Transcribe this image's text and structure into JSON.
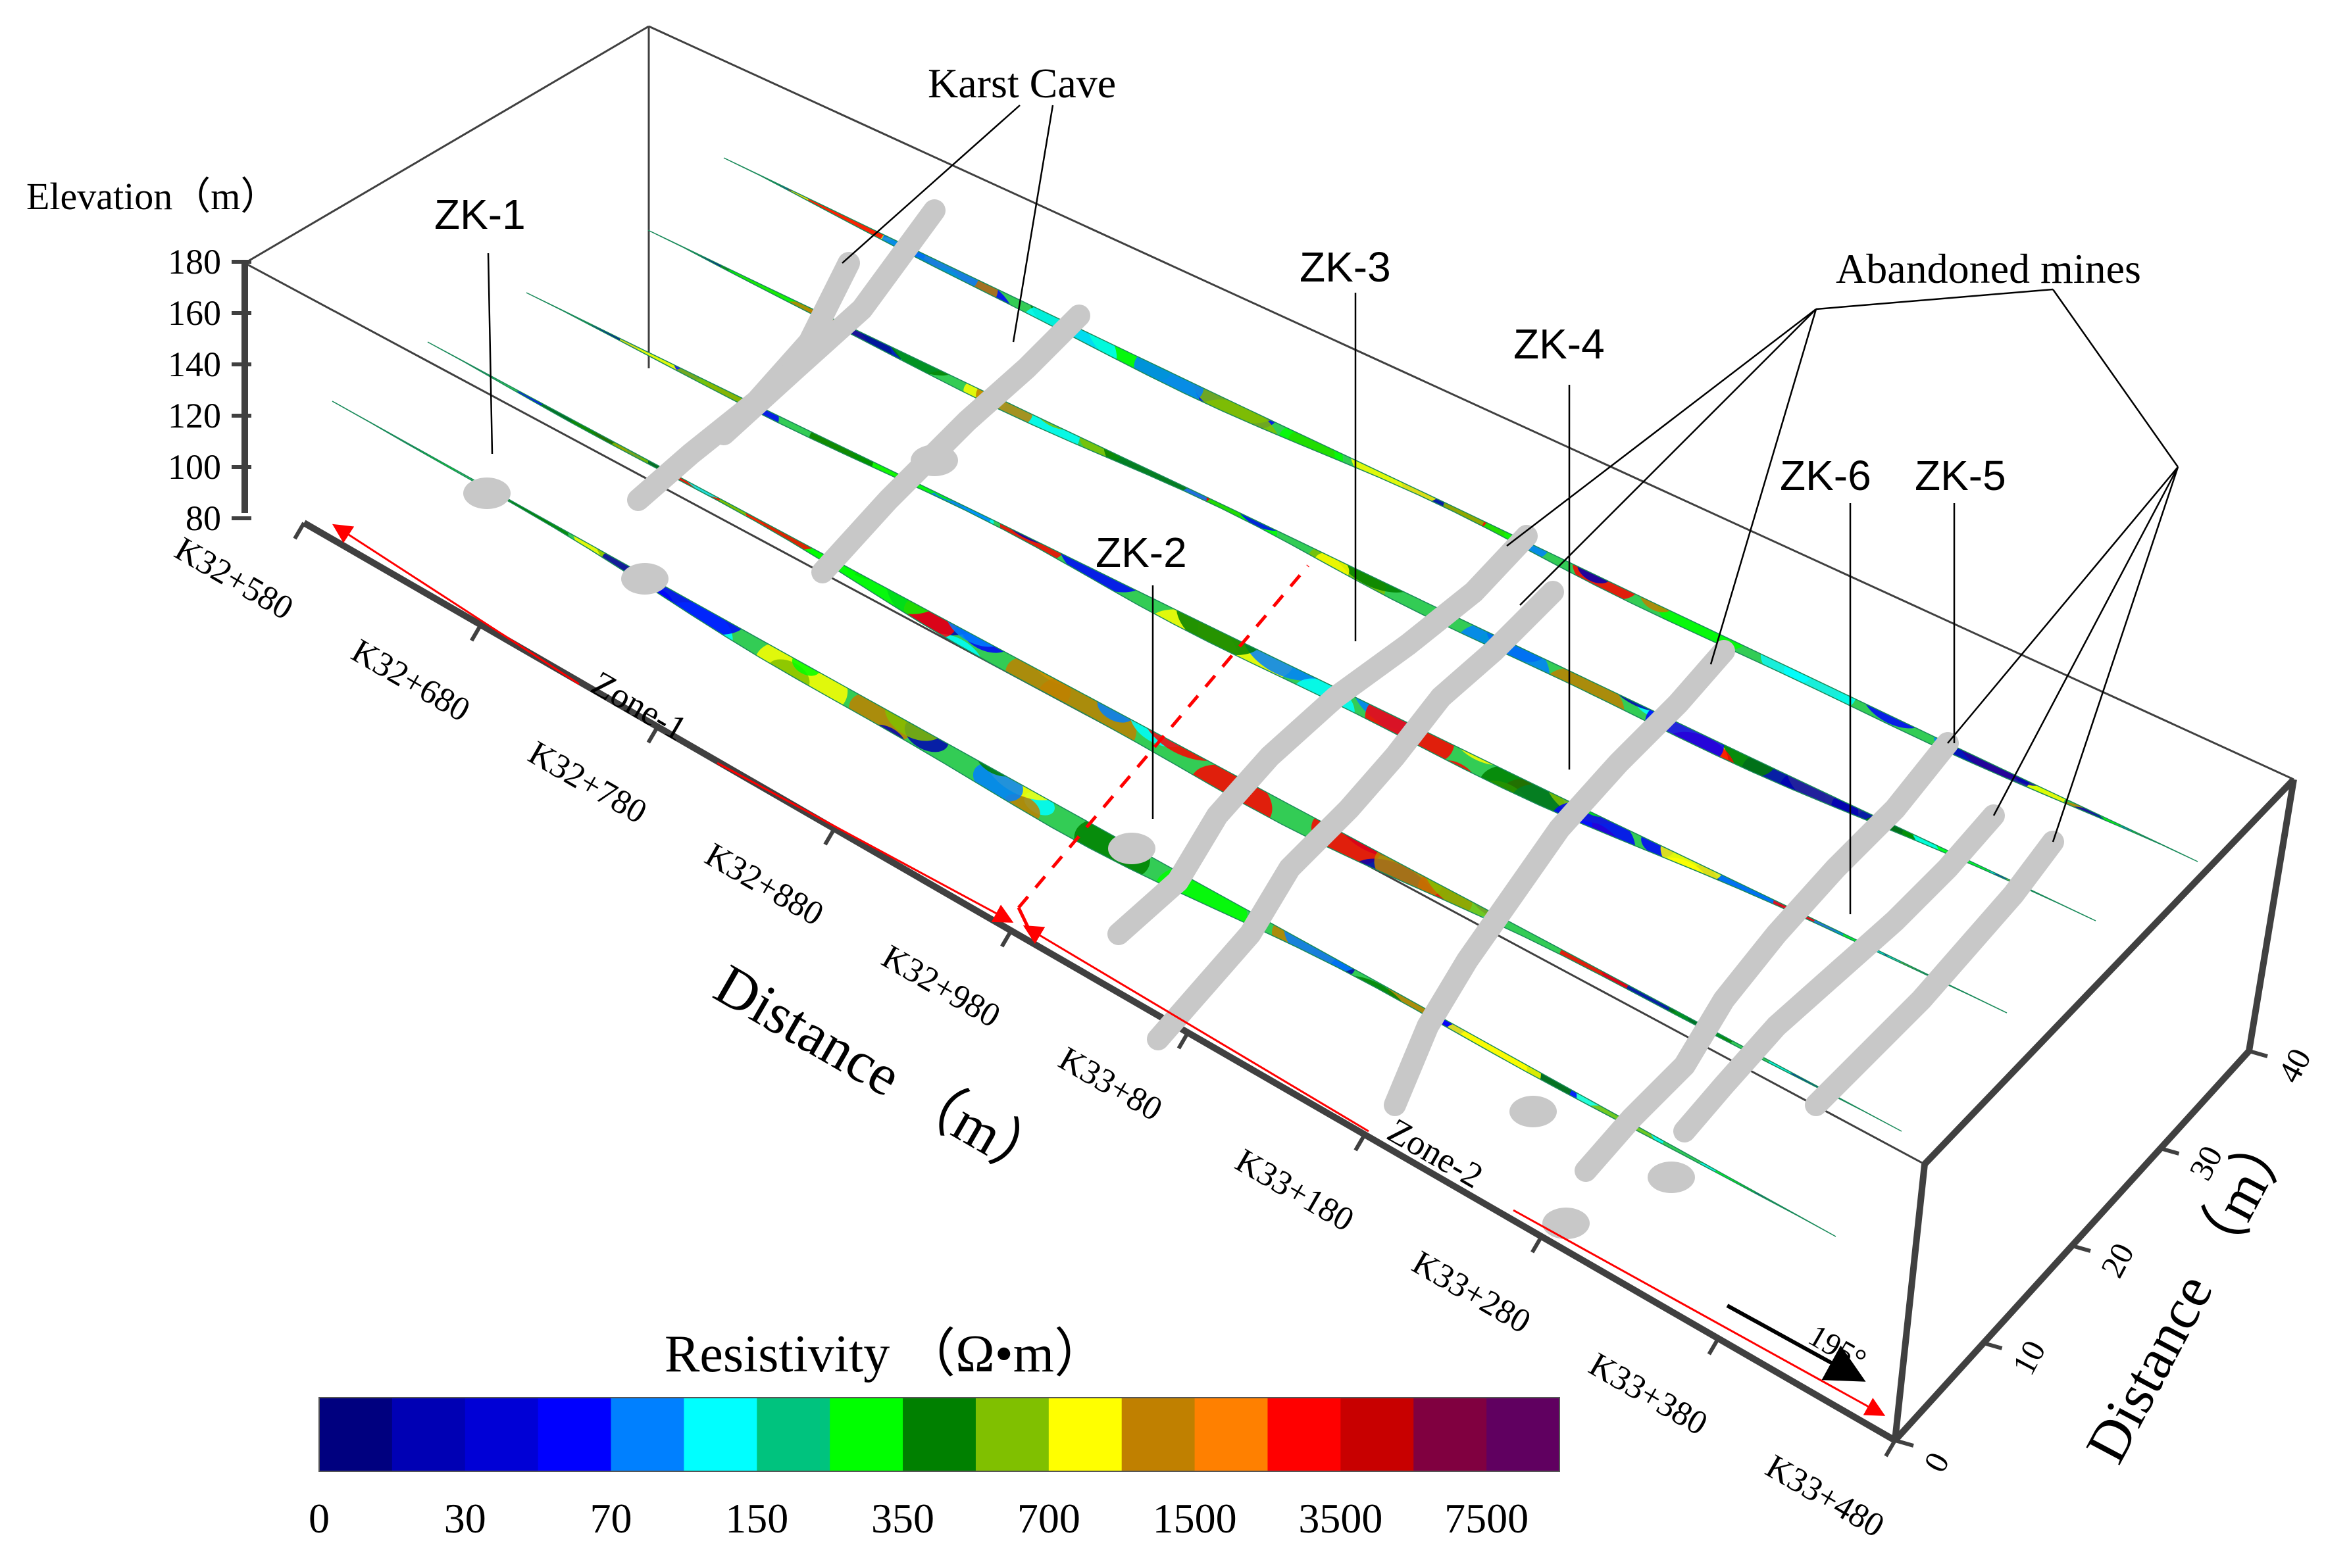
{
  "axes": {
    "elevation_label": "Elevation（m）",
    "elevation_ticks": [
      "180",
      "160",
      "140",
      "120",
      "100",
      "80"
    ],
    "distance_label": "Distance （m）",
    "distance_ticks": [
      "K32+580",
      "K32+680",
      "K32+780",
      "K32+880",
      "K32+980",
      "K33+80",
      "K33+180",
      "K33+280",
      "K33+380",
      "K33+480"
    ],
    "depth_label": "Distance （m）",
    "depth_ticks": [
      "0",
      "10",
      "20",
      "30",
      "40"
    ]
  },
  "annotations": {
    "karst_cave": "Karst Cave",
    "abandoned_mines": "Abandoned mines",
    "boreholes": [
      "ZK-1",
      "ZK-2",
      "ZK-3",
      "ZK-4",
      "ZK-6",
      "ZK-5"
    ],
    "zone1": "Zone-1",
    "zone2": "Zone-2",
    "direction": "195°"
  },
  "colorbar": {
    "title": "Resistivity （Ω•m）",
    "tick_labels": [
      "0",
      "30",
      "70",
      "150",
      "350",
      "700",
      "1500",
      "3500",
      "7500"
    ],
    "colors": [
      "#00007f",
      "#0000b4",
      "#0000d6",
      "#0000ff",
      "#0080ff",
      "#00ffff",
      "#00c37e",
      "#00ff00",
      "#008000",
      "#80c000",
      "#ffff00",
      "#c08000",
      "#ff8000",
      "#ff0000",
      "#c80000",
      "#800040",
      "#600060"
    ]
  },
  "colors": {
    "zone_arrow": "#ff0000",
    "box_frame": "#404040",
    "anomaly": "#c8c8c8"
  }
}
